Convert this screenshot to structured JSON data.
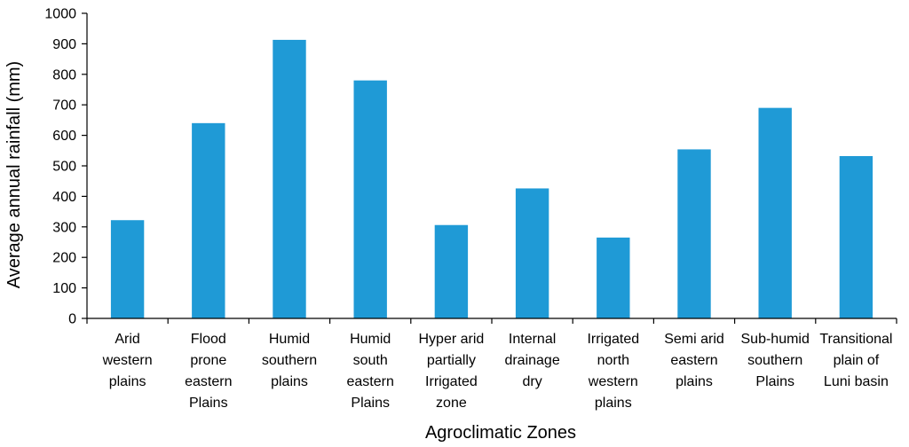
{
  "chart_data": {
    "type": "bar",
    "title": "",
    "xlabel": "Agroclimatic Zones",
    "ylabel": "Average annual rainfall (mm)",
    "ylim": [
      0,
      1000
    ],
    "yticks": [
      "0",
      "100",
      "200",
      "300",
      "400",
      "500",
      "600",
      "700",
      "800",
      "900",
      "1000"
    ],
    "grid": false,
    "legend": "none",
    "bar_color": "#1f9ad6",
    "categories": [
      [
        "Arid",
        "western",
        "plains"
      ],
      [
        "Flood",
        "prone",
        "eastern",
        "Plains"
      ],
      [
        "Humid",
        "southern",
        "plains"
      ],
      [
        "Humid",
        "south",
        "eastern",
        "Plains"
      ],
      [
        "Hyper arid",
        "partially",
        "Irrigated",
        "zone"
      ],
      [
        "Internal",
        "drainage",
        "dry"
      ],
      [
        "Irrigated",
        "north",
        "western",
        "plains"
      ],
      [
        "Semi arid",
        "eastern",
        "plains"
      ],
      [
        "Sub-humid",
        "southern",
        "Plains"
      ],
      [
        "Transitional",
        "plain of",
        "Luni basin"
      ]
    ],
    "values": [
      322,
      640,
      913,
      780,
      306,
      426,
      265,
      554,
      690,
      532
    ]
  }
}
